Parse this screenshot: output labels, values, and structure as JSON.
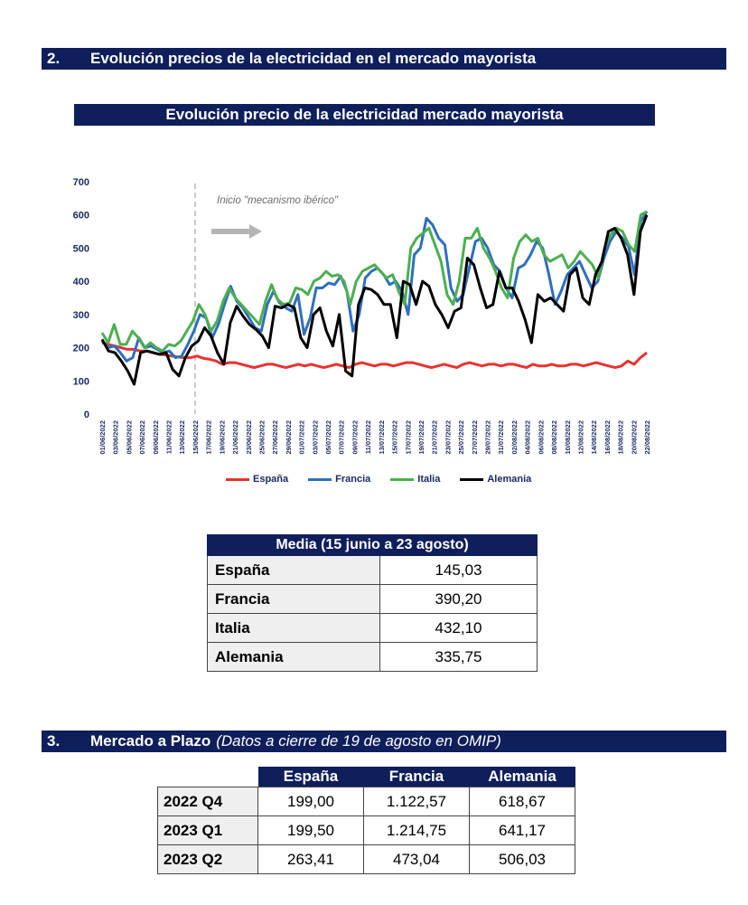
{
  "section2": {
    "number": "2.",
    "title": "Evolución precios de la electricidad en el mercado mayorista"
  },
  "chart_title": "Evolución precio de la electricidad mercado mayorista",
  "annotation": "Inicio \"mecanismo ibérico\"",
  "chart_data": {
    "type": "line",
    "title": "Evolución precio de la electricidad mercado mayorista",
    "ylim": [
      0,
      700
    ],
    "yticks": [
      "0",
      "100",
      "200",
      "300",
      "400",
      "500",
      "600",
      "700"
    ],
    "xtick_labels": [
      "01/06/2022",
      "03/06/2022",
      "05/06/2022",
      "07/06/2022",
      "09/06/2022",
      "11/06/2022",
      "13/06/2022",
      "15/06/2022",
      "17/06/2022",
      "19/06/2022",
      "21/06/2022",
      "23/06/2022",
      "25/06/2022",
      "27/06/2022",
      "29/06/2022",
      "01/07/2022",
      "03/07/2022",
      "05/07/2022",
      "07/07/2022",
      "09/07/2022",
      "11/07/2022",
      "13/07/2022",
      "15/07/2022",
      "17/07/2022",
      "19/07/2022",
      "21/07/2022",
      "23/07/2022",
      "25/07/2022",
      "27/07/2022",
      "29/07/2022",
      "31/07/2022",
      "02/08/2022",
      "04/08/2022",
      "06/08/2022",
      "08/08/2022",
      "10/08/2022",
      "12/08/2022",
      "14/08/2022",
      "16/08/2022",
      "18/08/2022",
      "20/08/2022",
      "22/08/2022"
    ],
    "marker_date": "15/06/2022",
    "series": [
      {
        "name": "España",
        "color": "#e8322e",
        "values": [
          215,
          210,
          205,
          200,
          195,
          195,
          190,
          190,
          185,
          180,
          178,
          175,
          172,
          170,
          170,
          175,
          168,
          165,
          160,
          150,
          155,
          155,
          150,
          145,
          140,
          145,
          150,
          150,
          145,
          140,
          145,
          150,
          145,
          150,
          145,
          140,
          145,
          150,
          145,
          140,
          150,
          155,
          150,
          145,
          150,
          150,
          145,
          150,
          155,
          155,
          150,
          145,
          140,
          145,
          150,
          145,
          140,
          150,
          155,
          150,
          145,
          150,
          150,
          145,
          150,
          150,
          145,
          140,
          150,
          145,
          145,
          150,
          145,
          145,
          150,
          150,
          145,
          150,
          155,
          150,
          145,
          140,
          145,
          160,
          150,
          170,
          185
        ]
      },
      {
        "name": "Francia",
        "color": "#2f6fbf",
        "values": [
          220,
          200,
          205,
          185,
          160,
          170,
          230,
          200,
          205,
          195,
          185,
          190,
          170,
          175,
          210,
          250,
          300,
          290,
          230,
          270,
          330,
          385,
          340,
          320,
          290,
          260,
          250,
          330,
          370,
          335,
          320,
          310,
          360,
          240,
          290,
          380,
          380,
          395,
          390,
          415,
          370,
          250,
          300,
          410,
          430,
          440,
          420,
          390,
          400,
          370,
          300,
          480,
          500,
          590,
          570,
          530,
          510,
          380,
          340,
          360,
          440,
          520,
          530,
          500,
          450,
          430,
          380,
          350,
          440,
          450,
          480,
          520,
          500,
          420,
          330,
          370,
          420,
          440,
          460,
          420,
          380,
          400,
          470,
          520,
          550,
          530,
          505,
          420,
          580,
          610
        ]
      },
      {
        "name": "Italia",
        "color": "#4caf50",
        "values": [
          245,
          215,
          270,
          210,
          210,
          250,
          230,
          200,
          215,
          200,
          190,
          210,
          205,
          220,
          250,
          280,
          330,
          300,
          250,
          280,
          340,
          380,
          350,
          330,
          310,
          290,
          270,
          340,
          390,
          345,
          330,
          335,
          380,
          375,
          360,
          400,
          410,
          430,
          415,
          420,
          400,
          330,
          400,
          430,
          440,
          450,
          430,
          410,
          420,
          370,
          330,
          500,
          530,
          545,
          560,
          510,
          460,
          360,
          330,
          400,
          530,
          530,
          560,
          500,
          470,
          430,
          380,
          350,
          470,
          520,
          540,
          520,
          530,
          480,
          460,
          470,
          480,
          440,
          460,
          490,
          470,
          450,
          410,
          500,
          540,
          560,
          550,
          510,
          490,
          600,
          610
        ]
      },
      {
        "name": "Alemania",
        "color": "#000000",
        "values": [
          225,
          190,
          185,
          160,
          130,
          90,
          185,
          190,
          185,
          180,
          185,
          135,
          115,
          170,
          205,
          220,
          260,
          235,
          185,
          150,
          275,
          325,
          295,
          270,
          255,
          235,
          200,
          325,
          320,
          330,
          320,
          230,
          200,
          300,
          320,
          250,
          205,
          300,
          130,
          115,
          330,
          380,
          375,
          360,
          330,
          330,
          230,
          400,
          390,
          330,
          400,
          385,
          330,
          300,
          260,
          310,
          320,
          470,
          450,
          380,
          320,
          330,
          430,
          380,
          380,
          340,
          285,
          215,
          360,
          340,
          350,
          330,
          310,
          420,
          440,
          350,
          330,
          420,
          460,
          550,
          560,
          530,
          480,
          360,
          550,
          600
        ]
      }
    ]
  },
  "legend": [
    {
      "label": "España",
      "color": "#e8322e"
    },
    {
      "label": "Francia",
      "color": "#2f6fbf"
    },
    {
      "label": "Italia",
      "color": "#4caf50"
    },
    {
      "label": "Alemania",
      "color": "#000000"
    }
  ],
  "media_table": {
    "header": "Media (15 junio a 23 agosto)",
    "rows": [
      {
        "label": "España",
        "value": "145,03"
      },
      {
        "label": "Francia",
        "value": "390,20"
      },
      {
        "label": "Italia",
        "value": "432,10"
      },
      {
        "label": "Alemania",
        "value": "335,75"
      }
    ]
  },
  "section3": {
    "number": "3.",
    "title": "Mercado a Plazo",
    "subtitle": "(Datos a cierre de 19 de agosto en OMIP)"
  },
  "plazo_table": {
    "columns": [
      "España",
      "Francia",
      "Alemania"
    ],
    "rows": [
      {
        "label": "2022 Q4",
        "values": [
          "199,00",
          "1.122,57",
          "618,67"
        ]
      },
      {
        "label": "2023 Q1",
        "values": [
          "199,50",
          "1.214,75",
          "641,17"
        ]
      },
      {
        "label": "2023 Q2",
        "values": [
          "263,41",
          "473,04",
          "506,03"
        ]
      }
    ]
  }
}
